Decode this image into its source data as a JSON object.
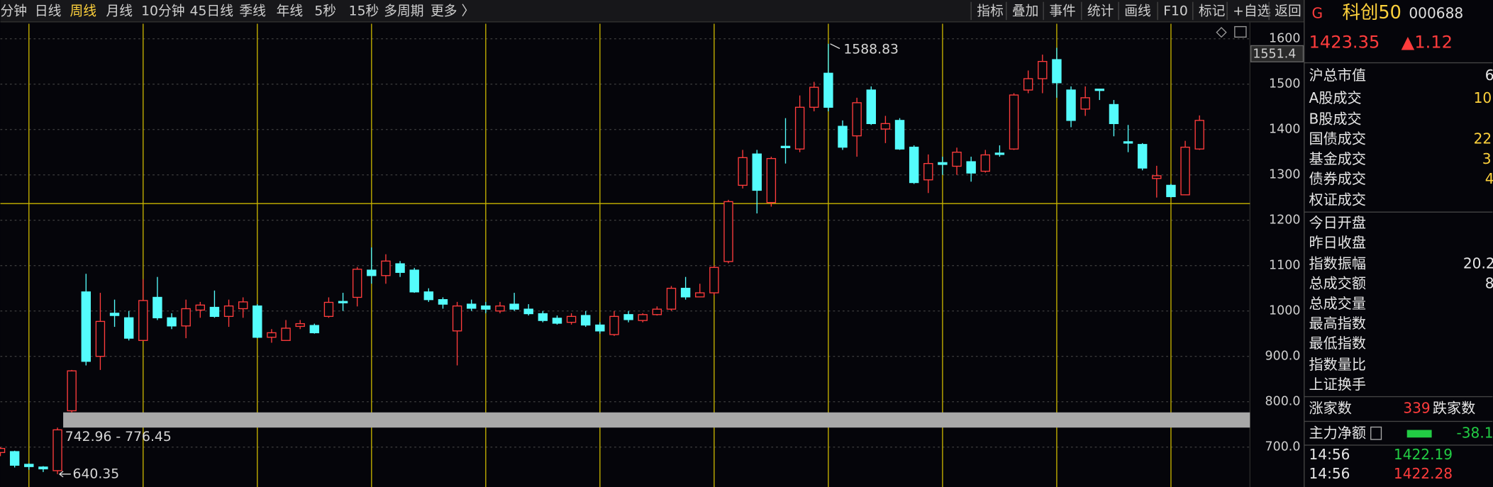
{
  "toolbar": {
    "left": [
      "分钟",
      "日线",
      "周线",
      "月线",
      "10分钟",
      "45日线",
      "季线",
      "年线",
      "5秒",
      "15秒",
      "多周期",
      "更多 〉"
    ],
    "right": [
      "指标",
      "叠加",
      "事件",
      "统计",
      "画线",
      "F10",
      "标记",
      "+自选",
      "返回"
    ]
  },
  "panel": {
    "badge": "G",
    "name": "科创50",
    "code": "000688",
    "price": "1423.35",
    "change": "▲1.12",
    "rows": [
      {
        "label": "沪总市值",
        "value": "6"
      },
      {
        "label": "A股成交",
        "value": "10"
      },
      {
        "label": "B股成交"
      },
      {
        "label": "国债成交",
        "value": "22"
      },
      {
        "label": "基金成交",
        "value": "3"
      },
      {
        "label": "债券成交",
        "value": "4"
      },
      {
        "label": "权证成交"
      },
      {
        "label": "今日开盘"
      },
      {
        "label": "昨日收盘"
      },
      {
        "label": "指数振幅",
        "value": "20.2"
      },
      {
        "label": "总成交额",
        "value": "8"
      },
      {
        "label": "总成交量"
      },
      {
        "label": "最高指数"
      },
      {
        "label": "最低指数"
      },
      {
        "label": "指数量比"
      },
      {
        "label": "上证换手"
      }
    ],
    "breadth": {
      "up_label": "涨家数",
      "up_value": "339",
      "down_label": "跌家数"
    },
    "flow": {
      "label": "主力净额",
      "value": "-38.1"
    },
    "ticks": [
      {
        "time": "14:56",
        "price": "1422.19"
      },
      {
        "time": "14:56",
        "price": "1422.28"
      }
    ]
  },
  "chart_data": {
    "type": "candlestick",
    "open": [
      688,
      690,
      662,
      656,
      648,
      780,
      1042,
      900,
      995,
      985,
      935,
      1030,
      985,
      967,
      1002,
      1008,
      988,
      1005,
      1011,
      942,
      935,
      966,
      968,
      988,
      1021,
      1030,
      1090,
      1078,
      1104,
      1090,
      1042,
      1025,
      956,
      1015,
      1011,
      1000,
      1015,
      1004,
      994,
      984,
      975,
      990,
      969,
      948,
      992,
      979,
      992,
      1004,
      1050,
      1031,
      1040,
      1109,
      1277,
      1346,
      1239,
      1363,
      1357,
      1449,
      1524,
      1407,
      1386,
      1487,
      1401,
      1420,
      1361,
      1289,
      1327,
      1319,
      1329,
      1308,
      1348,
      1357,
      1487,
      1512,
      1554,
      1487,
      1445,
      1489,
      1455,
      1373,
      1367,
      1292,
      1277,
      1256,
      1357
    ],
    "high": [
      700,
      692,
      664,
      658,
      742.96,
      870,
      1082,
      1040,
      1025,
      1000,
      1070,
      1075,
      995,
      1025,
      1020,
      1045,
      1025,
      1030,
      1015,
      960,
      980,
      980,
      972,
      1030,
      1040,
      1097,
      1140,
      1125,
      1110,
      1095,
      1050,
      1030,
      1020,
      1025,
      1020,
      1020,
      1040,
      1015,
      1000,
      990,
      995,
      1000,
      975,
      1000,
      1000,
      995,
      1010,
      1055,
      1075,
      1060,
      1100,
      1245,
      1355,
      1355,
      1340,
      1425,
      1475,
      1505,
      1588.83,
      1420,
      1470,
      1495,
      1430,
      1425,
      1365,
      1345,
      1340,
      1360,
      1340,
      1355,
      1365,
      1480,
      1530,
      1565,
      1580,
      1495,
      1495,
      1490,
      1465,
      1410,
      1370,
      1320,
      1280,
      1375,
      1431
    ],
    "low": [
      680,
      655,
      650,
      645,
      640.35,
      776.45,
      880,
      870,
      965,
      935,
      935,
      980,
      960,
      940,
      985,
      985,
      965,
      985,
      940,
      930,
      935,
      960,
      950,
      985,
      1000,
      1010,
      1060,
      1060,
      1075,
      1040,
      1020,
      1005,
      880,
      1000,
      995,
      995,
      1000,
      990,
      975,
      970,
      970,
      965,
      950,
      945,
      975,
      975,
      990,
      1000,
      1025,
      1030,
      1035,
      1105,
      1270,
      1215,
      1230,
      1325,
      1350,
      1440,
      1440,
      1355,
      1340,
      1410,
      1370,
      1355,
      1280,
      1260,
      1300,
      1300,
      1285,
      1305,
      1340,
      1355,
      1480,
      1480,
      1470,
      1405,
      1430,
      1465,
      1385,
      1350,
      1310,
      1250,
      1250,
      1255,
      1355
    ],
    "close": [
      697,
      660,
      657,
      652,
      738,
      868,
      889,
      977,
      990,
      940,
      1023,
      985,
      967,
      1005,
      1013,
      988,
      1011,
      1020,
      942,
      952,
      962,
      972,
      952,
      1019,
      1018,
      1092,
      1078,
      1110,
      1085,
      1042,
      1025,
      1015,
      1011,
      1006,
      1004,
      1011,
      1004,
      994,
      979,
      973,
      988,
      969,
      956,
      988,
      981,
      992,
      1004,
      1050,
      1031,
      1040,
      1096,
      1241,
      1338,
      1266,
      1336,
      1360,
      1449,
      1493,
      1449,
      1361,
      1459,
      1413,
      1413,
      1357,
      1283,
      1325,
      1323,
      1350,
      1304,
      1344,
      1345,
      1476,
      1512,
      1550,
      1503,
      1420,
      1470,
      1486,
      1413,
      1370,
      1315,
      1298,
      1252,
      1361,
      1420
    ],
    "up_color": "#ff3c3c",
    "down_color": "#54fcfc",
    "ylim": [
      612,
      1633
    ],
    "yticks": [
      1600,
      1500,
      1400,
      1300,
      1200,
      1100,
      1000,
      {
        "value": 900,
        "label": "900.0"
      },
      {
        "value": 800,
        "label": "800.0"
      },
      {
        "value": 700,
        "label": "700.0"
      }
    ],
    "grid": true,
    "gap": {
      "low": 742.96,
      "high": 776.45,
      "label": "742.96 - 776.45"
    },
    "annotations": [
      "1588.83",
      "640.35"
    ],
    "cursor_label": "1551.4"
  }
}
